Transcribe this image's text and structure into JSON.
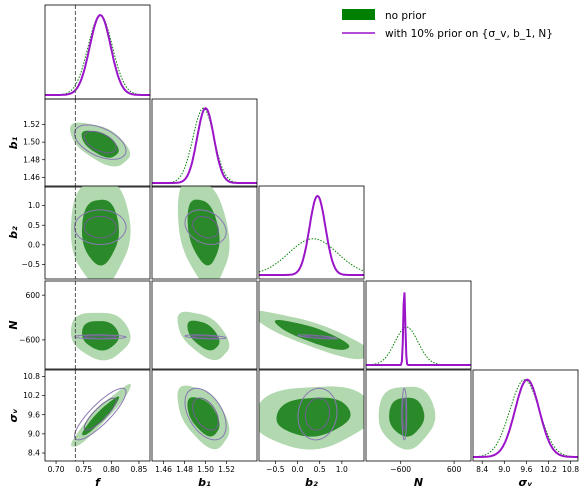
{
  "chart_data": {
    "type": "corner",
    "legend": {
      "position": "top-right",
      "entries": [
        {
          "label": "no prior",
          "color": "#008000",
          "style": "filled"
        },
        {
          "label": "with 10% prior on {σ_v, b_1, N}",
          "color": "#9a14c8",
          "style": "line"
        }
      ]
    },
    "params": [
      {
        "label": "f",
        "lim": [
          0.68,
          0.87
        ],
        "ticks": [
          0.7,
          0.75,
          0.8,
          0.85
        ],
        "tick_labels": [
          "0.70",
          "0.75",
          "0.80",
          "0.85"
        ]
      },
      {
        "label": "b₁",
        "lim": [
          1.449,
          1.549
        ],
        "ticks": [
          1.46,
          1.48,
          1.5,
          1.52
        ],
        "tick_labels": [
          "1.46",
          "1.48",
          "1.50",
          "1.52"
        ]
      },
      {
        "label": "b₂",
        "lim": [
          -0.87,
          1.5
        ],
        "ticks": [
          -0.5,
          0.0,
          0.5,
          1.0
        ],
        "tick_labels": [
          "−0.5",
          "0.0",
          "0.5",
          "1.0"
        ]
      },
      {
        "label": "N",
        "lim": [
          -1380,
          980
        ],
        "ticks": [
          -600,
          600
        ],
        "tick_labels": [
          "−600",
          "600"
        ]
      },
      {
        "label": "σᵥ",
        "lim": [
          8.15,
          11.0
        ],
        "ticks": [
          8.4,
          9.0,
          9.6,
          10.2,
          10.8
        ],
        "tick_labels": [
          "8.4",
          "9.0",
          "9.6",
          "10.2",
          "10.8"
        ]
      }
    ],
    "row_ticks": {
      "b₁": [
        "1.52",
        "1.50",
        "1.48",
        "1.46"
      ],
      "b₂": [
        "1.0",
        "0.5",
        "0.0",
        "−0.5"
      ],
      "N": [
        "600",
        "−600"
      ],
      "σᵥ": [
        "10.8",
        "10.2",
        "9.6",
        "9.0",
        "8.4"
      ]
    },
    "reference_line": {
      "param": "f",
      "value": 0.735,
      "style": "dashed"
    },
    "no_prior": {
      "means": [
        0.78,
        1.498,
        0.35,
        -470,
        9.55
      ],
      "sigmas": [
        0.022,
        0.01,
        0.55,
        260,
        0.4
      ],
      "correlations": {
        "f,b1": -0.55,
        "f,b2": 0.0,
        "f,N": -0.1,
        "f,sigma_v": 0.95,
        "b1,b2": -0.3,
        "b1,N": -0.5,
        "b1,sigma_v": -0.5,
        "b2,N": -0.85,
        "b2,sigma_v": 0.1,
        "N,sigma_v": 0.0
      }
    },
    "with_prior": {
      "means": [
        0.78,
        1.5,
        0.45,
        -520,
        9.62
      ],
      "sigmas": [
        0.019,
        0.008,
        0.18,
        22,
        0.33
      ]
    }
  }
}
